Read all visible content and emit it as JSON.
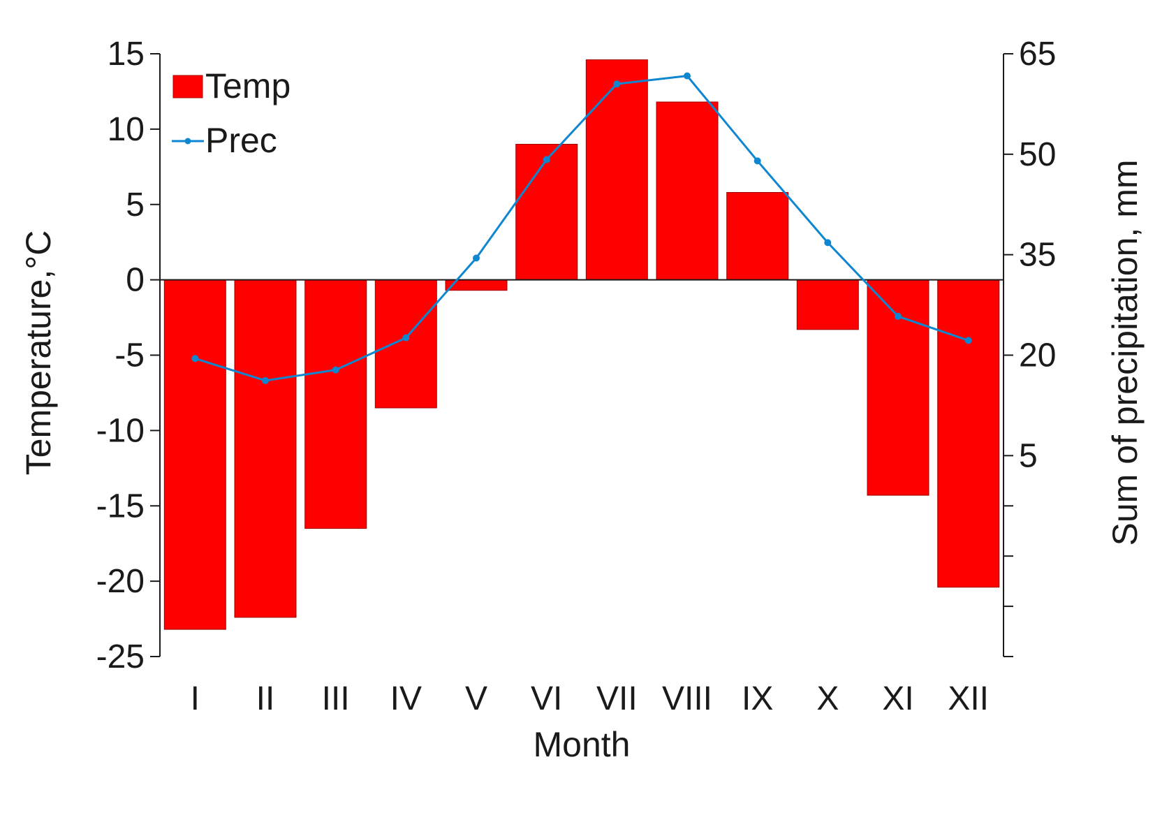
{
  "chart_data": {
    "type": "bar+line",
    "title": "",
    "xlabel": "Month",
    "ylabel_left": "Temperature,°C",
    "ylabel_right": "Sum of precipitation,  mm",
    "categories": [
      "I",
      "II",
      "III",
      "IV",
      "V",
      "VI",
      "VII",
      "VIII",
      "IX",
      "X",
      "XI",
      "XII"
    ],
    "series": [
      {
        "name": "Temp",
        "type": "bar",
        "axis": "left",
        "color": "#ff0000",
        "values": [
          -23.2,
          -22.4,
          -16.5,
          -8.5,
          -0.7,
          9.0,
          14.6,
          11.8,
          5.8,
          -3.3,
          -14.3,
          -20.4
        ]
      },
      {
        "name": "Prec",
        "type": "line",
        "axis": "right",
        "color": "#0f86d0",
        "values": [
          19.5,
          16.2,
          17.8,
          22.6,
          34.5,
          49.2,
          60.5,
          61.7,
          49.0,
          36.8,
          25.8,
          22.2
        ]
      }
    ],
    "ylim_left": [
      -25,
      15
    ],
    "yticks_left": [
      15,
      10,
      5,
      0,
      -5,
      -10,
      -15,
      -20,
      -25
    ],
    "ylim_right": [
      -25,
      65
    ],
    "yticks_right": [
      65,
      50,
      35,
      20,
      5
    ],
    "yticks_right_unlabeled": [
      -10,
      -25
    ],
    "grid": false,
    "legend_position": "top-left"
  }
}
